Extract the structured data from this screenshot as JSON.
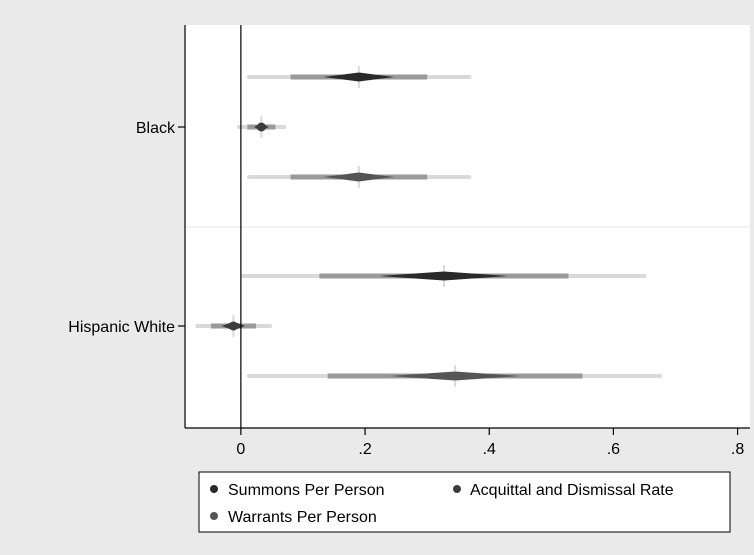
{
  "chart_data": {
    "type": "scatter",
    "subtype": "coefficient-plot-with-graded-confidence-intervals",
    "title": "",
    "xlabel": "",
    "ylabel": "",
    "xlim": [
      -0.09,
      0.82
    ],
    "x_ticks": [
      0,
      0.2,
      0.4,
      0.6,
      0.8
    ],
    "x_tick_labels": [
      "0",
      ".2",
      ".4",
      ".6",
      ".8"
    ],
    "groups": [
      "Black",
      "Hispanic White"
    ],
    "reference_line_x": 0,
    "legend_position": "bottom",
    "series": [
      {
        "name": "Summons Per Person",
        "color": "#2a2a2a",
        "points": [
          {
            "group": "Black",
            "estimate": 0.19,
            "ci_low": 0.013,
            "ci_high": 0.368
          },
          {
            "group": "Hispanic White",
            "estimate": 0.327,
            "ci_low": 0.003,
            "ci_high": 0.65
          }
        ]
      },
      {
        "name": "Acquittal and Dismissal Rate",
        "color": "#3c3c3c",
        "points": [
          {
            "group": "Black",
            "estimate": 0.033,
            "ci_low": -0.003,
            "ci_high": 0.07
          },
          {
            "group": "Hispanic White",
            "estimate": -0.012,
            "ci_low": -0.07,
            "ci_high": 0.047
          }
        ]
      },
      {
        "name": "Warrants Per Person",
        "color": "#555555",
        "points": [
          {
            "group": "Black",
            "estimate": 0.19,
            "ci_low": 0.013,
            "ci_high": 0.368
          },
          {
            "group": "Hispanic White",
            "estimate": 0.345,
            "ci_low": 0.013,
            "ci_high": 0.675
          }
        ]
      }
    ],
    "colors": {
      "background": "#eaeaea",
      "plot_area": "#ffffff",
      "axis": "#000000",
      "ci_outer": "#d9d9d9"
    }
  }
}
